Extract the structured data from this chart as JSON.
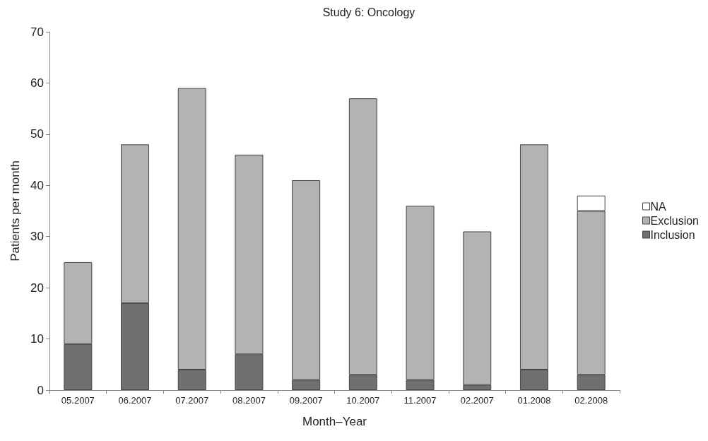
{
  "chart_data": {
    "type": "bar",
    "title": "Study 6: Oncology",
    "xlabel": "Month–Year",
    "ylabel": "Patients per month",
    "categories": [
      "05.2007",
      "06.2007",
      "07.2007",
      "08.2007",
      "09.2007",
      "10.2007",
      "11.2007",
      "02.2007",
      "01.2008",
      "02.2008"
    ],
    "stacked": true,
    "series": [
      {
        "name": "Inclusion",
        "color": "#707070",
        "values": [
          9,
          17,
          4,
          7,
          2,
          3,
          2,
          1,
          4,
          3
        ]
      },
      {
        "name": "Exclusion",
        "color": "#b3b3b3",
        "values": [
          16,
          31,
          55,
          39,
          39,
          54,
          34,
          30,
          44,
          32
        ]
      },
      {
        "name": "NA",
        "color": "#ffffff",
        "values": [
          null,
          null,
          null,
          null,
          null,
          null,
          null,
          null,
          null,
          3
        ]
      }
    ],
    "ylim": [
      0,
      70
    ],
    "yticks": [
      0,
      10,
      20,
      30,
      40,
      50,
      60,
      70
    ],
    "grid": false,
    "legend": "right"
  }
}
